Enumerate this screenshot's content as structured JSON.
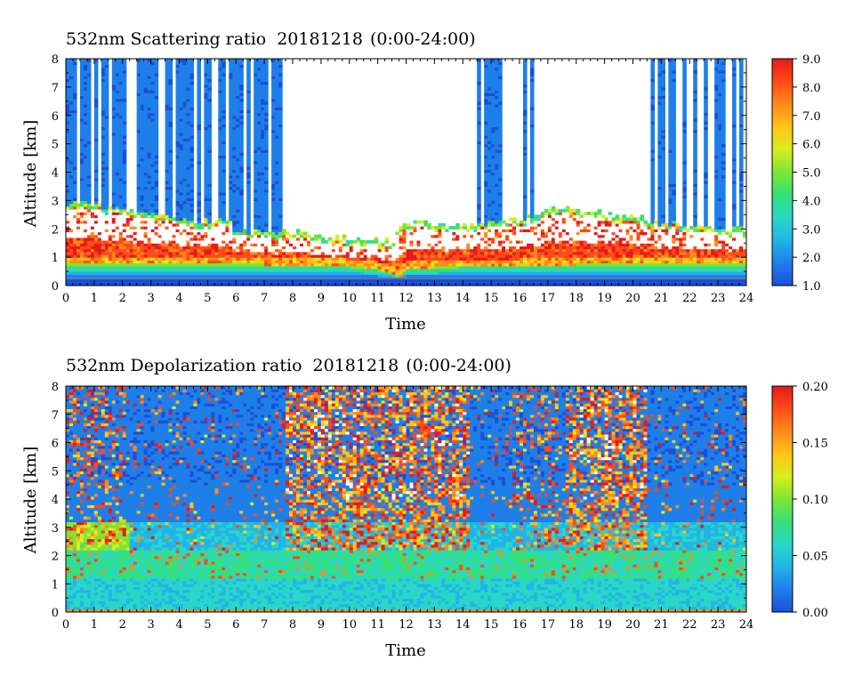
{
  "chart_data": [
    {
      "type": "heatmap",
      "title": "532nm Scattering ratio",
      "date": "20181218",
      "time_range": "(0:00-24:00)",
      "xlabel": "Time",
      "ylabel": "Altitude [km]",
      "xlim": [
        0,
        24
      ],
      "ylim": [
        0,
        8
      ],
      "x_ticks": [
        "0",
        "1",
        "2",
        "3",
        "4",
        "5",
        "6",
        "7",
        "8",
        "9",
        "10",
        "11",
        "12",
        "13",
        "14",
        "15",
        "16",
        "17",
        "18",
        "19",
        "20",
        "21",
        "22",
        "23",
        "24"
      ],
      "y_ticks": [
        "0",
        "1",
        "2",
        "3",
        "4",
        "5",
        "6",
        "7",
        "8"
      ],
      "colorbar": {
        "range": [
          1.0,
          9.0
        ],
        "ticks": [
          "1.0",
          "2.0",
          "3.0",
          "4.0",
          "5.0",
          "6.0",
          "7.0",
          "8.0",
          "9.0"
        ]
      },
      "description_series": {
        "cloud_top_km": {
          "x": [
            0,
            1,
            2,
            3,
            4,
            5,
            5.8,
            6,
            7,
            8,
            9,
            10,
            11,
            11.5,
            12,
            13,
            14,
            15,
            16,
            17,
            17.5,
            18,
            19,
            20,
            21,
            22,
            23,
            24
          ],
          "y": [
            2.8,
            2.7,
            2.6,
            2.4,
            2.2,
            2.1,
            2.1,
            1.8,
            1.7,
            1.75,
            1.6,
            1.5,
            1.45,
            1.4,
            2.1,
            2.0,
            1.95,
            2.05,
            2.2,
            2.5,
            2.6,
            2.5,
            2.4,
            2.3,
            2.1,
            2.0,
            1.9,
            1.8
          ]
        },
        "cloud_base_km": {
          "x": [
            0,
            1,
            2,
            3,
            4,
            5,
            6,
            7,
            8,
            9,
            10,
            11,
            11.5,
            11.8,
            12,
            13,
            14,
            15,
            16,
            17,
            18,
            19,
            20,
            21,
            22,
            23,
            24
          ],
          "y": [
            0.8,
            0.8,
            0.8,
            0.8,
            0.8,
            0.8,
            0.8,
            0.75,
            0.75,
            0.75,
            0.7,
            0.6,
            0.45,
            0.3,
            0.6,
            0.65,
            0.7,
            0.7,
            0.7,
            0.75,
            0.75,
            0.8,
            0.8,
            0.8,
            0.8,
            0.8,
            0.8
          ]
        }
      }
    },
    {
      "type": "heatmap",
      "title": "532nm Depolarization ratio",
      "date": "20181218",
      "time_range": "(0:00-24:00)",
      "xlabel": "Time",
      "ylabel": "Altitude [km]",
      "xlim": [
        0,
        24
      ],
      "ylim": [
        0,
        8
      ],
      "x_ticks": [
        "0",
        "1",
        "2",
        "3",
        "4",
        "5",
        "6",
        "7",
        "8",
        "9",
        "10",
        "11",
        "12",
        "13",
        "14",
        "15",
        "16",
        "17",
        "18",
        "19",
        "20",
        "21",
        "22",
        "23",
        "24"
      ],
      "y_ticks": [
        "0",
        "1",
        "2",
        "3",
        "4",
        "5",
        "6",
        "7",
        "8"
      ],
      "colorbar": {
        "range": [
          0.0,
          0.2
        ],
        "ticks": [
          "0.00",
          "0.05",
          "0.10",
          "0.15",
          "0.20"
        ]
      }
    }
  ],
  "colors": {
    "scale": [
      "#1b4fd8",
      "#1f7fe8",
      "#22b4e8",
      "#2ad7c6",
      "#36e07a",
      "#7de634",
      "#d8ee1e",
      "#ffc41a",
      "#ff8a1a",
      "#ff4a1a",
      "#e61a1a"
    ],
    "no_data": "#ffffff"
  }
}
